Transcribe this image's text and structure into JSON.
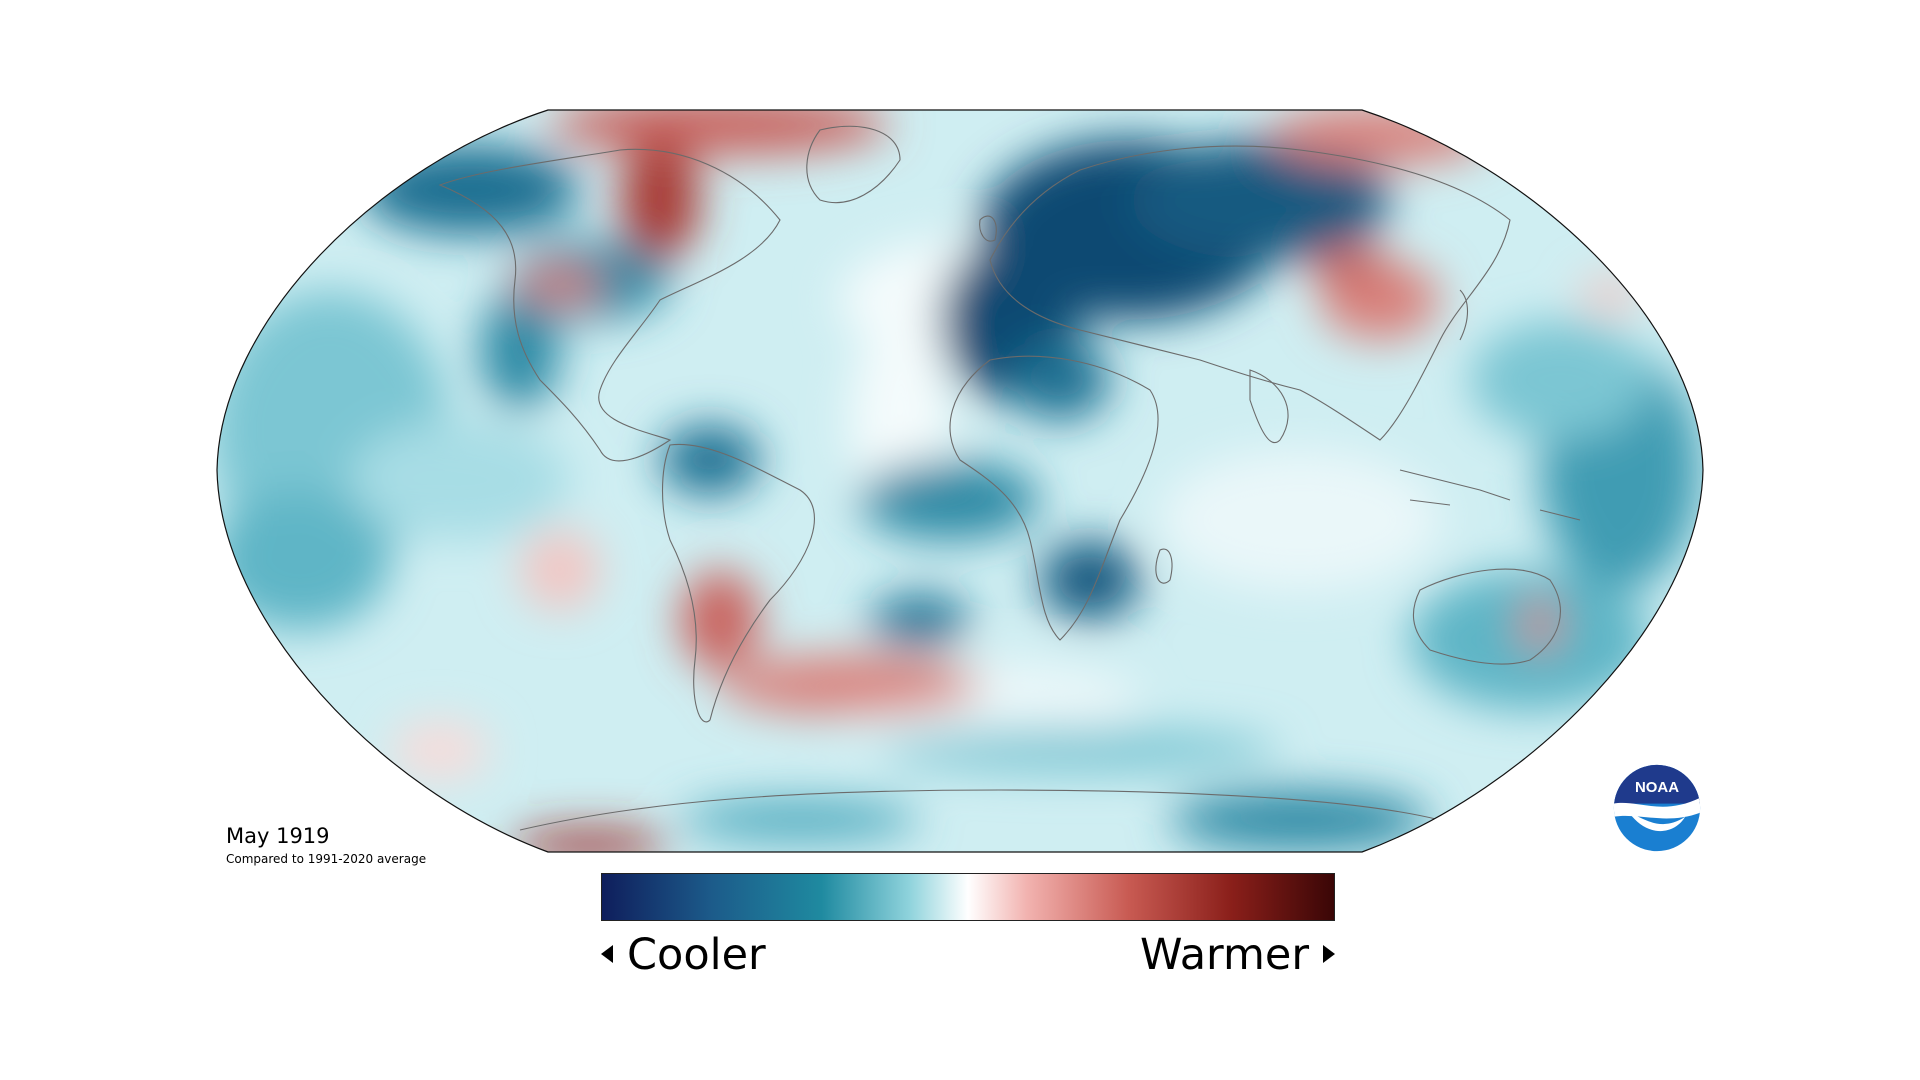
{
  "caption": {
    "title": "May 1919",
    "subtitle": "Compared to 1991-2020 average"
  },
  "legend": {
    "left_label": "Cooler",
    "right_label": "Warmer",
    "colors": [
      "#0f1e5c",
      "#1c5b8a",
      "#1f8aa0",
      "#8fd3dc",
      "#ffffff",
      "#f2b3b0",
      "#c85a52",
      "#8a1f1a",
      "#3a0606"
    ]
  },
  "logo": {
    "text": "NOAA",
    "colors": {
      "top": "#1f3a8c",
      "bottom": "#1a7fd1",
      "bird": "#ffffff"
    }
  },
  "map": {
    "projection": "Robinson",
    "anomaly_colors": {
      "cool_strong": "#0e4a72",
      "cool_mid": "#2d8aa5",
      "cool_light": "#a8dee6",
      "neutral": "#f4fbfc",
      "warm_light": "#f3c6c3",
      "warm_mid": "#d07370",
      "warm_strong": "#9c2d2b"
    }
  }
}
